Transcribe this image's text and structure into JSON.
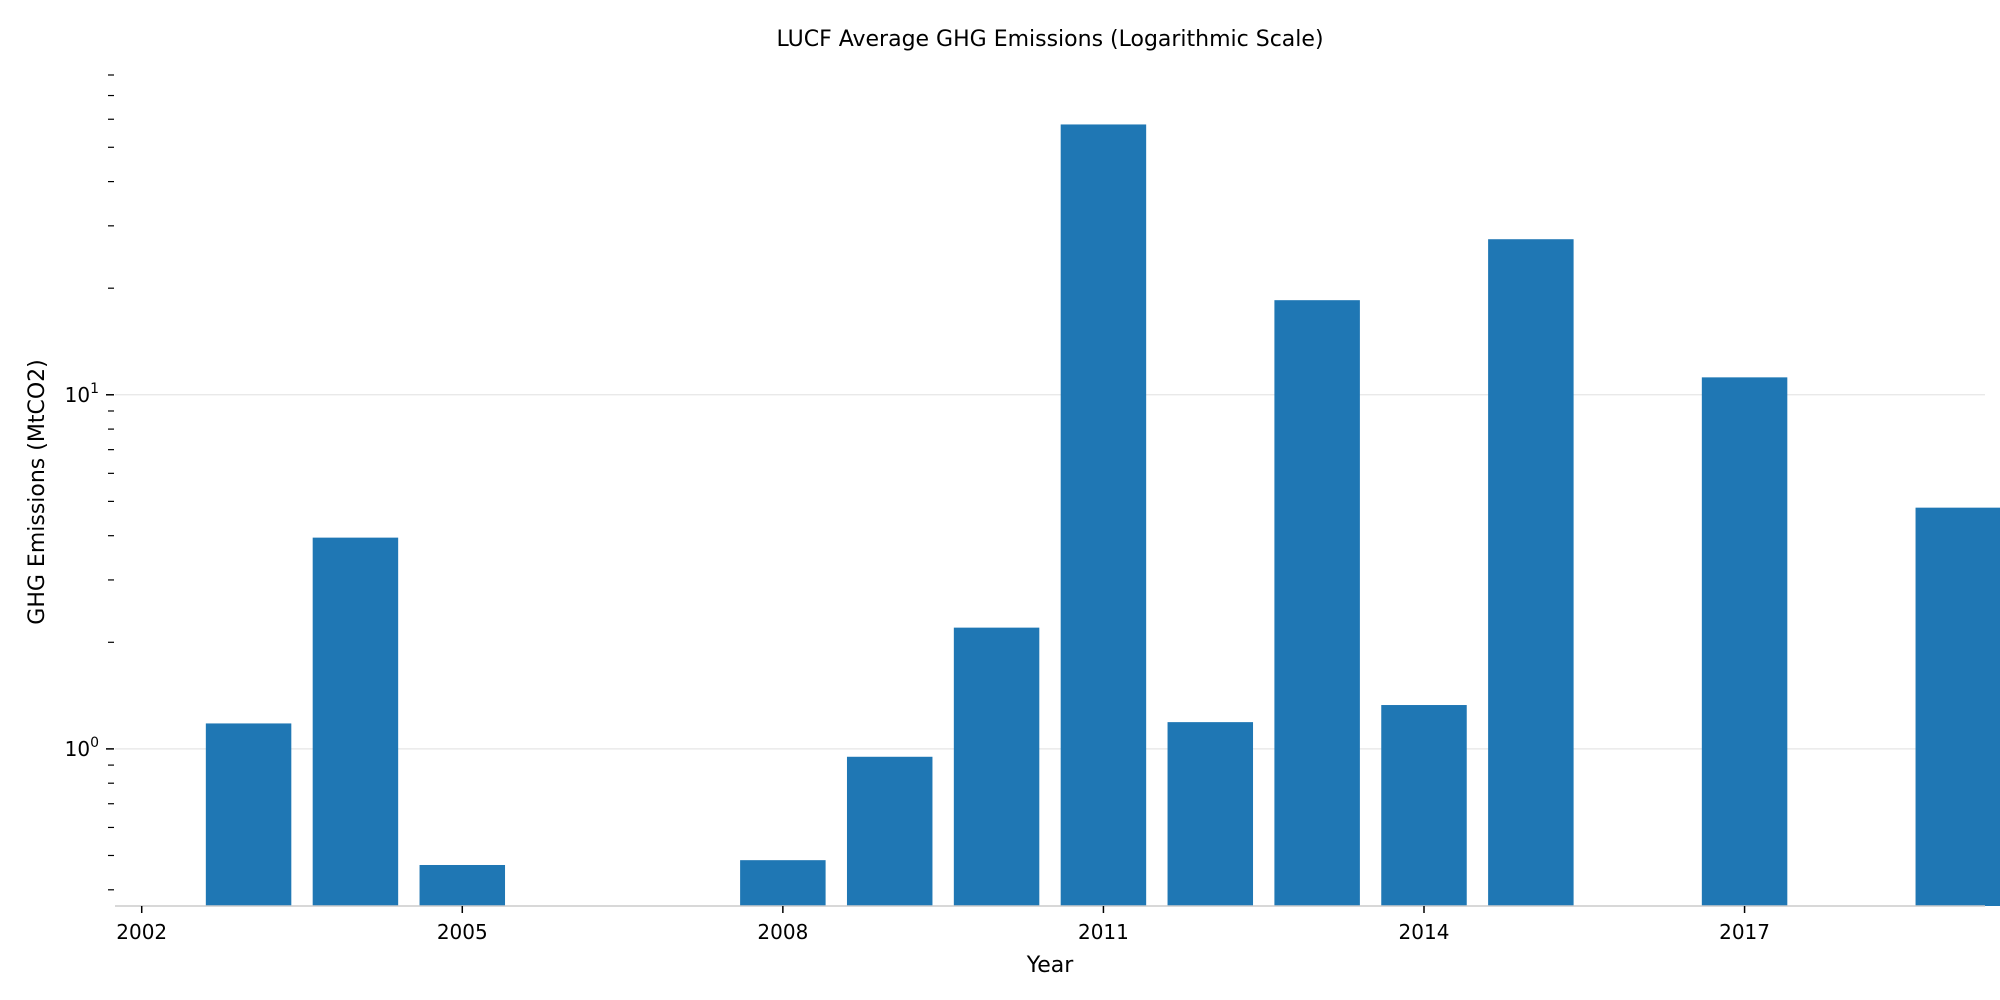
{
  "chart_data": {
    "type": "bar",
    "title": "LUCF Average GHG Emissions (Logarithmic Scale)",
    "xlabel": "Year",
    "ylabel": "GHG Emissions (MtCO2)",
    "y_scale": "log",
    "ylim": [
      0.36,
      80
    ],
    "xlim": [
      2001.75,
      2019.25
    ],
    "grid": "horizontal, major ticks only",
    "legend": "none",
    "x_ticks": [
      2002,
      2005,
      2008,
      2011,
      2014,
      2017
    ],
    "y_major_ticks": [
      {
        "value": 1,
        "base": "10",
        "exp": "0"
      },
      {
        "value": 10,
        "base": "10",
        "exp": "1"
      }
    ],
    "y_minor_ticks": [
      0.4,
      0.5,
      0.6,
      0.7,
      0.8,
      0.9,
      2,
      3,
      4,
      5,
      6,
      7,
      8,
      9,
      20,
      30,
      40,
      50,
      60,
      70,
      80
    ],
    "x": [
      2003,
      2004,
      2005,
      2008,
      2009,
      2010,
      2011,
      2012,
      2013,
      2014,
      2015,
      2017,
      2019
    ],
    "values": [
      1.18,
      3.95,
      0.47,
      0.485,
      0.95,
      2.2,
      58,
      1.19,
      18.5,
      1.33,
      27.5,
      11.2,
      4.8
    ],
    "bar_color": "#1f77b4"
  }
}
